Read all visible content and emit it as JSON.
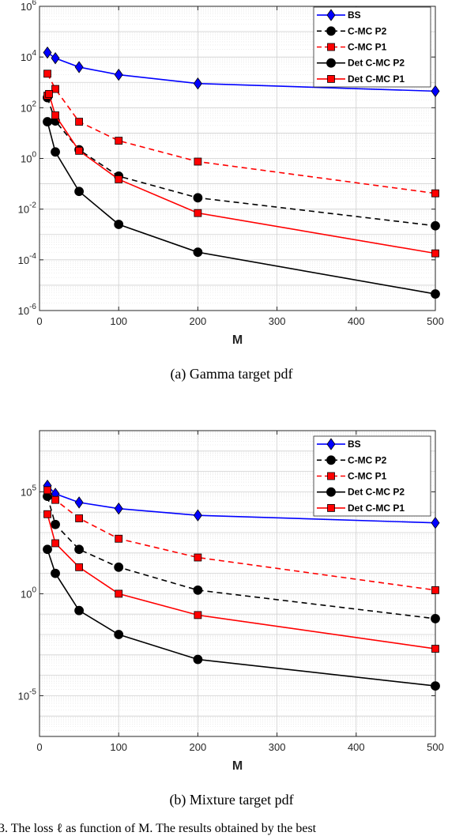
{
  "chart_data": [
    {
      "type": "line",
      "caption": "(a)  Gamma target pdf",
      "xlabel": "M",
      "xlim": [
        0,
        500
      ],
      "x_ticks": [
        0,
        100,
        200,
        300,
        400,
        500
      ],
      "yscale": "log",
      "ylim": [
        1e-06,
        1000000.0
      ],
      "y_ticks": [
        {
          "value": 1e-06,
          "base": "10",
          "exp": "-6"
        },
        {
          "value": 0.0001,
          "base": "10",
          "exp": "-4"
        },
        {
          "value": 0.01,
          "base": "10",
          "exp": "-2"
        },
        {
          "value": 1,
          "base": "10",
          "exp": "0"
        },
        {
          "value": 100,
          "base": "10",
          "exp": "2"
        },
        {
          "value": 10000,
          "base": "10",
          "exp": "4"
        },
        {
          "value": 1000000,
          "base": "10",
          "exp": "6"
        }
      ],
      "grid": true,
      "legend_position": "top-right",
      "x": [
        10,
        20,
        50,
        100,
        200,
        500
      ],
      "series": [
        {
          "name": "BS",
          "color": "#0000ff",
          "dash": "solid",
          "marker": "diamond",
          "x": [
            10,
            20,
            50,
            100,
            200,
            500
          ],
          "values": [
            15000,
            9000,
            4000,
            2000,
            900,
            450
          ]
        },
        {
          "name": "C-MC P2",
          "color": "#000000",
          "dash": "dashed",
          "marker": "circle",
          "x": [
            10,
            20,
            50,
            100,
            200,
            500
          ],
          "values": [
            250,
            30,
            2.2,
            0.2,
            0.028,
            0.0022
          ]
        },
        {
          "name": "C-MC P1",
          "color": "#ff0000",
          "dash": "dashed",
          "marker": "square",
          "x": [
            10,
            20,
            50,
            100,
            200,
            500
          ],
          "values": [
            2200,
            550,
            28,
            5,
            0.75,
            0.042
          ]
        },
        {
          "name": "Det C-MC P2",
          "color": "#000000",
          "dash": "solid",
          "marker": "circle",
          "x": [
            10,
            20,
            50,
            100,
            200,
            500
          ],
          "values": [
            28,
            1.8,
            0.05,
            0.0025,
            0.0002,
            4.5e-06
          ]
        },
        {
          "name": "Det C-MC P1",
          "color": "#ff0000",
          "dash": "solid",
          "marker": "square",
          "x": [
            10,
            12,
            20,
            50,
            100,
            200,
            500
          ],
          "values": [
            300,
            350,
            50,
            2,
            0.15,
            0.007,
            0.00018
          ]
        }
      ]
    },
    {
      "type": "line",
      "caption": "(b)  Mixture target pdf",
      "xlabel": "M",
      "xlim": [
        0,
        500
      ],
      "x_ticks": [
        0,
        100,
        200,
        300,
        400,
        500
      ],
      "yscale": "log",
      "ylim": [
        1e-07,
        100000000.0
      ],
      "y_ticks": [
        {
          "value": 1e-05,
          "base": "10",
          "exp": "-5"
        },
        {
          "value": 1,
          "base": "10",
          "exp": "0"
        },
        {
          "value": 100000,
          "base": "10",
          "exp": "5"
        }
      ],
      "grid": true,
      "legend_position": "top-right",
      "series": [
        {
          "name": "BS",
          "color": "#0000ff",
          "dash": "solid",
          "marker": "diamond",
          "x": [
            10,
            20,
            50,
            100,
            200,
            500
          ],
          "values": [
            200000,
            80000,
            30000,
            15000,
            7000,
            3000
          ]
        },
        {
          "name": "C-MC P2",
          "color": "#000000",
          "dash": "dashed",
          "marker": "circle",
          "x": [
            10,
            20,
            50,
            100,
            200,
            500
          ],
          "values": [
            60000,
            2500,
            150,
            20,
            1.5,
            0.06
          ]
        },
        {
          "name": "C-MC P1",
          "color": "#ff0000",
          "dash": "dashed",
          "marker": "square",
          "x": [
            10,
            20,
            50,
            100,
            200,
            500
          ],
          "values": [
            120000,
            40000,
            5000,
            500,
            60,
            1.5
          ]
        },
        {
          "name": "Det C-MC P2",
          "color": "#000000",
          "dash": "solid",
          "marker": "circle",
          "x": [
            10,
            20,
            50,
            100,
            200,
            500
          ],
          "values": [
            150,
            10,
            0.15,
            0.01,
            0.0006,
            3e-05
          ]
        },
        {
          "name": "Det C-MC P1",
          "color": "#ff0000",
          "dash": "solid",
          "marker": "square",
          "x": [
            10,
            20,
            50,
            100,
            200,
            500
          ],
          "values": [
            8000,
            300,
            20,
            1,
            0.09,
            0.002
          ]
        }
      ]
    }
  ],
  "footer_text": "3.  The loss ℓ as function of M. The results obtained by the best"
}
